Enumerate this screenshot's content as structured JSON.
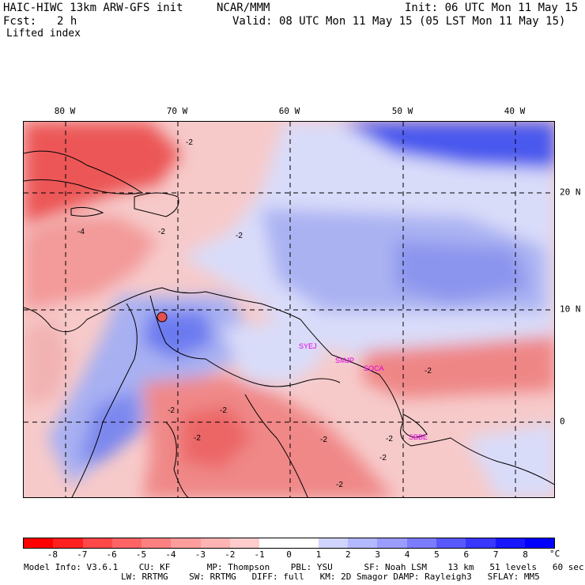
{
  "header": {
    "model_title": "HAIC-HIWC 13km ARW-GFS init",
    "org": "NCAR/MMM",
    "init": "Init: 06 UTC Mon 11 May 15",
    "fcst_label": "Fcst:",
    "fcst_value": "2 h",
    "valid": "Valid: 08 UTC Mon 11 May 15 (05 LST Mon 11 May 15)",
    "field": "Lifted index"
  },
  "map": {
    "lon_labels": [
      "80 W",
      "70 W",
      "60 W",
      "50 W",
      "40 W"
    ],
    "lat_labels": [
      "20 N",
      "10 N",
      "0"
    ],
    "stations": [
      "SYEJ",
      "SMJP",
      "SOCA",
      "SBBE"
    ],
    "contour_labels": [
      "-2",
      "-2",
      "-2",
      "-4",
      "-2",
      "-2",
      "-2",
      "-2",
      "-2",
      "-2",
      "-2",
      "-2"
    ],
    "colors": {
      "negative_strong": "#e83a3a",
      "negative_weak": "#f5b0b0",
      "neutral": "#fdf2f2",
      "positive_weak": "#d8dcfa",
      "positive_strong": "#3a4fe8"
    }
  },
  "colorbar": {
    "ticks": [
      "-8",
      "-7",
      "-6",
      "-5",
      "-4",
      "-3",
      "-2",
      "-1",
      "0",
      "1",
      "2",
      "3",
      "4",
      "5",
      "6",
      "7",
      "8"
    ],
    "unit": "°C",
    "colors": [
      "#ff0000",
      "#ff2020",
      "#ff4848",
      "#ff6464",
      "#ff8080",
      "#ff9c9c",
      "#ffb4b4",
      "#ffcccc",
      "#ffffff",
      "#ffffff",
      "#d0d4ff",
      "#b4b8ff",
      "#9c9cff",
      "#7c7cff",
      "#5858ff",
      "#3838ff",
      "#1818ff",
      "#0000ff"
    ]
  },
  "model_info": {
    "line1": "Model Info: V3.6.1    CU: KF       MP: Thompson    PBL: YSU      SF: Noah LSM    13 km   51 levels   60 sec",
    "line2": "LW: RRTMG    SW: RRTMG   DIFF: full   KM: 2D Smagor DAMP: Rayleigh3   SFLAY: MM5"
  }
}
